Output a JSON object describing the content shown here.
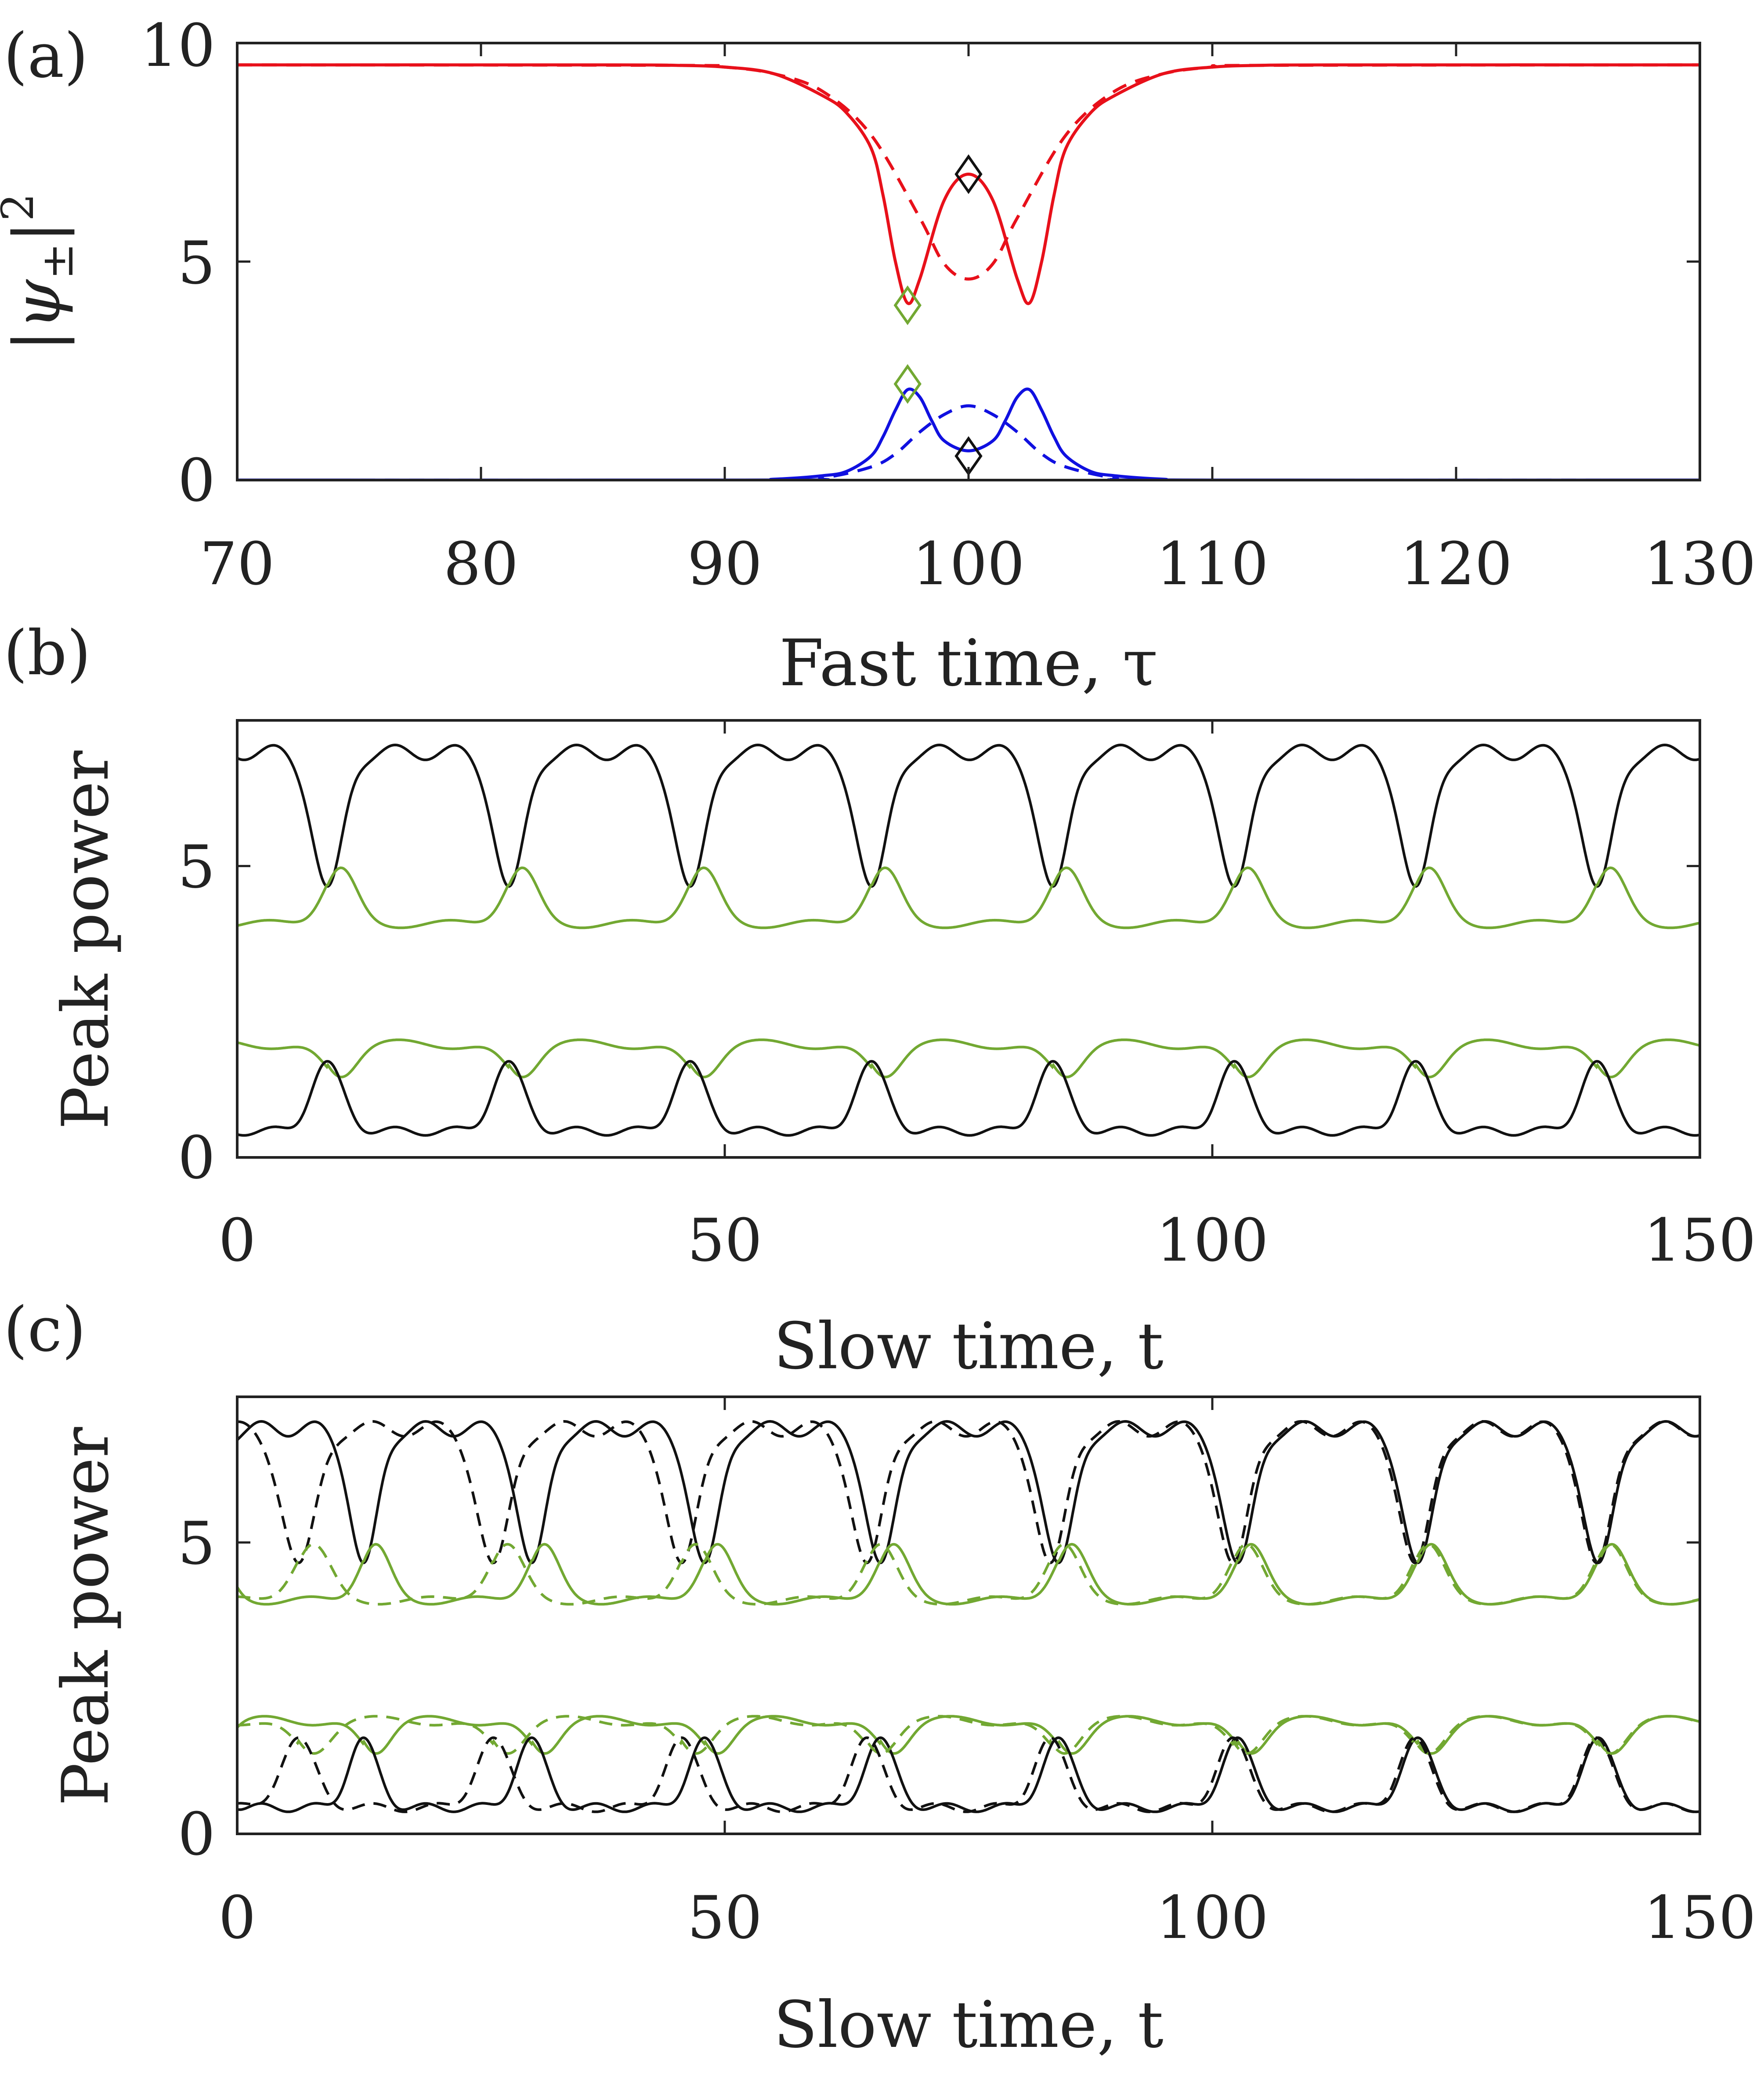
{
  "colors": {
    "red": "#e8101a",
    "blue": "#1010e0",
    "green": "#72a832",
    "black": "#111111"
  },
  "chart_data": [
    {
      "panel": "(a)",
      "type": "line",
      "xlabel": "Fast time, τ",
      "ylabel_parts": {
        "bar_left": "|",
        "base": "ψ",
        "sub": "±",
        "bar_right": "|",
        "sup": "2"
      },
      "xlim": [
        70,
        130
      ],
      "ylim": [
        0,
        10
      ],
      "xticks": [
        70,
        80,
        90,
        100,
        110,
        120,
        130
      ],
      "yticks": [
        0,
        5,
        10
      ],
      "xtick_labels": [
        "70",
        "80",
        "90",
        "100",
        "110",
        "120",
        "130"
      ],
      "ytick_labels": [
        "0",
        "5",
        "10"
      ],
      "series": [
        {
          "name": "psi_plus_solid",
          "color": "red",
          "dash": false,
          "x": [
            70,
            85,
            88,
            90,
            92,
            94,
            95,
            96,
            96.5,
            97,
            97.5,
            98,
            99,
            100,
            101,
            102,
            102.5,
            103,
            103.5,
            104,
            105,
            106,
            108,
            110,
            112,
            115,
            130
          ],
          "y": [
            9.5,
            9.5,
            9.49,
            9.45,
            9.3,
            8.8,
            8.4,
            7.6,
            6.5,
            5.0,
            4.05,
            4.6,
            6.4,
            7.0,
            6.4,
            4.6,
            4.05,
            5.0,
            6.5,
            7.6,
            8.4,
            8.8,
            9.3,
            9.45,
            9.49,
            9.5,
            9.5
          ]
        },
        {
          "name": "psi_plus_dashed",
          "color": "red",
          "dash": true,
          "x": [
            70,
            88,
            90,
            92,
            94,
            96,
            98,
            99,
            100,
            101,
            102,
            104,
            106,
            108,
            110,
            112,
            130
          ],
          "y": [
            9.5,
            9.49,
            9.45,
            9.3,
            8.9,
            7.9,
            6.0,
            4.95,
            4.6,
            4.95,
            6.0,
            7.9,
            8.9,
            9.3,
            9.45,
            9.49,
            9.5
          ]
        },
        {
          "name": "psi_minus_solid",
          "color": "blue",
          "dash": false,
          "x": [
            70,
            90,
            92,
            94,
            95,
            96,
            96.5,
            97,
            97.5,
            98,
            98.5,
            99,
            100,
            101,
            101.5,
            102,
            102.5,
            103,
            103.5,
            104,
            105,
            106,
            108,
            110,
            130
          ],
          "y": [
            0,
            0.0,
            0.02,
            0.1,
            0.2,
            0.55,
            1.0,
            1.6,
            2.07,
            1.9,
            1.35,
            0.9,
            0.67,
            0.9,
            1.35,
            1.9,
            2.07,
            1.6,
            1.0,
            0.55,
            0.2,
            0.1,
            0.02,
            0.0,
            0
          ]
        },
        {
          "name": "psi_minus_dashed",
          "color": "blue",
          "dash": true,
          "x": [
            70,
            92,
            94,
            96,
            97,
            98,
            99,
            100,
            101,
            102,
            103,
            104,
            106,
            108,
            130
          ],
          "y": [
            0,
            0.0,
            0.05,
            0.3,
            0.6,
            1.1,
            1.5,
            1.7,
            1.5,
            1.1,
            0.6,
            0.3,
            0.05,
            0.0,
            0
          ]
        }
      ],
      "markers": [
        {
          "x": 100,
          "y": 7.0,
          "color": "black",
          "shape": "diamond"
        },
        {
          "x": 100,
          "y": 0.55,
          "color": "black",
          "shape": "diamond"
        },
        {
          "x": 97.5,
          "y": 4.0,
          "color": "green",
          "shape": "diamond"
        },
        {
          "x": 97.5,
          "y": 2.2,
          "color": "green",
          "shape": "diamond"
        }
      ]
    },
    {
      "panel": "(b)",
      "type": "line",
      "xlabel": "Slow time, t",
      "ylabel": "Peak power",
      "xlim": [
        0,
        150
      ],
      "ylim": [
        0,
        7.5
      ],
      "xticks": [
        0,
        50,
        100,
        150
      ],
      "yticks": [
        0,
        5
      ],
      "xtick_labels": [
        "0",
        "50",
        "100",
        "150"
      ],
      "ytick_labels": [
        "0",
        "5"
      ],
      "period": 18.6,
      "series": [
        {
          "name": "black_upper",
          "color": "black",
          "dash": false,
          "phase": 0,
          "offset": 0,
          "profile": "upper_black"
        },
        {
          "name": "green_upper",
          "color": "green",
          "dash": false,
          "phase": 0,
          "offset": 0,
          "profile": "upper_green"
        },
        {
          "name": "green_lower",
          "color": "green",
          "dash": false,
          "phase": 0,
          "offset": 0,
          "profile": "lower_green"
        },
        {
          "name": "black_lower",
          "color": "black",
          "dash": false,
          "phase": 0,
          "offset": 0,
          "profile": "lower_black"
        }
      ]
    },
    {
      "panel": "(c)",
      "type": "line",
      "xlabel": "Slow time, t",
      "ylabel": "Peak power",
      "xlim": [
        0,
        150
      ],
      "ylim": [
        0,
        7.5
      ],
      "xticks": [
        0,
        50,
        100,
        150
      ],
      "yticks": [
        0,
        5
      ],
      "xtick_labels": [
        "0",
        "50",
        "100",
        "150"
      ],
      "ytick_labels": [
        "0",
        "5"
      ],
      "period": 18.6,
      "series": [
        {
          "name": "black_upper_solid",
          "color": "black",
          "dash": false,
          "profile": "upper_black",
          "shift_start": -5.2,
          "shift_decay": 38
        },
        {
          "name": "green_upper_solid",
          "color": "green",
          "dash": false,
          "profile": "upper_green",
          "shift_start": -5.2,
          "shift_decay": 38
        },
        {
          "name": "green_lower_solid",
          "color": "green",
          "dash": false,
          "profile": "lower_green",
          "shift_start": -5.2,
          "shift_decay": 38
        },
        {
          "name": "black_lower_solid",
          "color": "black",
          "dash": false,
          "profile": "lower_black",
          "shift_start": -5.2,
          "shift_decay": 38
        },
        {
          "name": "black_upper_dashed",
          "color": "black",
          "dash": true,
          "profile": "upper_black",
          "shift_start": 3.6,
          "shift_decay": 32
        },
        {
          "name": "green_upper_dashed",
          "color": "green",
          "dash": true,
          "profile": "upper_green",
          "shift_start": 3.6,
          "shift_decay": 32
        },
        {
          "name": "green_lower_dashed",
          "color": "green",
          "dash": true,
          "profile": "lower_green",
          "shift_start": 3.6,
          "shift_decay": 32
        },
        {
          "name": "black_lower_dashed",
          "color": "black",
          "dash": true,
          "profile": "lower_black",
          "shift_start": 3.6,
          "shift_decay": 32
        }
      ]
    }
  ]
}
